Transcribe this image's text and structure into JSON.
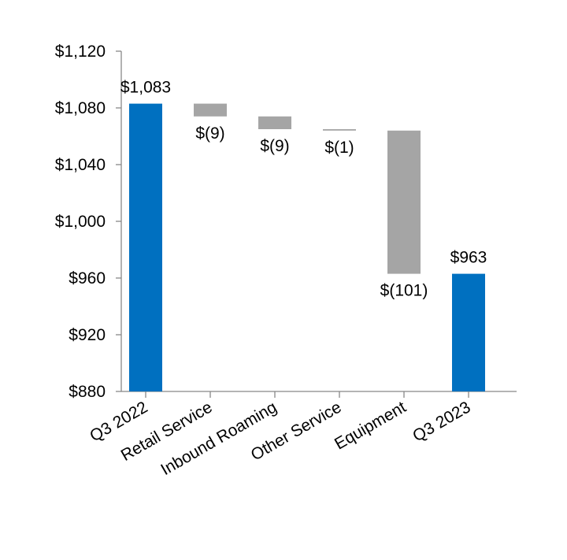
{
  "chart_data": {
    "type": "bar",
    "subtype": "waterfall",
    "categories": [
      "Q3 2022",
      "Retail Service",
      "Inbound Roaming",
      "Other Service",
      "Equipment",
      "Q3 2023"
    ],
    "bars": [
      {
        "category": "Q3 2022",
        "kind": "total",
        "start": 880,
        "end": 1083,
        "label": "$1,083"
      },
      {
        "category": "Retail Service",
        "kind": "change",
        "start": 1083,
        "end": 1074,
        "label": "$(9)"
      },
      {
        "category": "Inbound Roaming",
        "kind": "change",
        "start": 1074,
        "end": 1065,
        "label": "$(9)"
      },
      {
        "category": "Other Service",
        "kind": "change",
        "start": 1065,
        "end": 1064,
        "label": "$(1)"
      },
      {
        "category": "Equipment",
        "kind": "change",
        "start": 1064,
        "end": 963,
        "label": "$(101)"
      },
      {
        "category": "Q3 2023",
        "kind": "total",
        "start": 880,
        "end": 963,
        "label": "$963"
      }
    ],
    "y_ticks": [
      {
        "value": 1120,
        "label": "$1,120"
      },
      {
        "value": 1080,
        "label": "$1,080"
      },
      {
        "value": 1040,
        "label": "$1,040"
      },
      {
        "value": 1000,
        "label": "$1,000"
      },
      {
        "value": 960,
        "label": "$960"
      },
      {
        "value": 920,
        "label": "$920"
      },
      {
        "value": 880,
        "label": "$880"
      }
    ],
    "ylim": [
      880,
      1120
    ],
    "grid": false,
    "legend": "none",
    "colors": {
      "total": "#0070C0",
      "change": "#A5A5A5",
      "axis": "#888888"
    }
  }
}
